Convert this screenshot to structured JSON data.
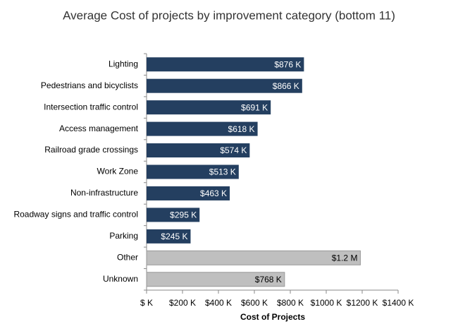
{
  "chart_data": {
    "type": "hbar",
    "title": "Average Cost of projects by improvement category (bottom 11)",
    "x_label": "Cost of Projects",
    "categories": [
      "Lighting",
      "Pedestrians and bicyclists",
      "Intersection traffic control",
      "Access management",
      "Railroad grade crossings",
      "Work Zone",
      "Non-infrastructure",
      "Roadway signs and traffic control",
      "Parking",
      "Other",
      "Unknown"
    ],
    "values": [
      876,
      866,
      691,
      618,
      574,
      513,
      463,
      295,
      245,
      1190,
      768
    ],
    "value_labels": [
      "$876 K",
      "$866 K",
      "$691 K",
      "$618 K",
      "$574 K",
      "$513 K",
      "$463 K",
      "$295 K",
      "$245 K",
      "$1.2 M",
      "$768 K"
    ],
    "colors": [
      "#243f60",
      "#243f60",
      "#243f60",
      "#243f60",
      "#243f60",
      "#243f60",
      "#243f60",
      "#243f60",
      "#243f60",
      "#bfbfbf",
      "#bfbfbf"
    ],
    "xlim": [
      0,
      1400
    ],
    "xticks": [
      {
        "value": 0,
        "label": "$ K"
      },
      {
        "value": 200,
        "label": "$200 K"
      },
      {
        "value": 400,
        "label": "$400 K"
      },
      {
        "value": 600,
        "label": "$600 K"
      },
      {
        "value": 800,
        "label": "$800 K"
      },
      {
        "value": 1000,
        "label": "$1000 K"
      },
      {
        "value": 1200,
        "label": "$1200 K"
      },
      {
        "value": 1400,
        "label": "$1400 K"
      }
    ],
    "grid": false
  }
}
